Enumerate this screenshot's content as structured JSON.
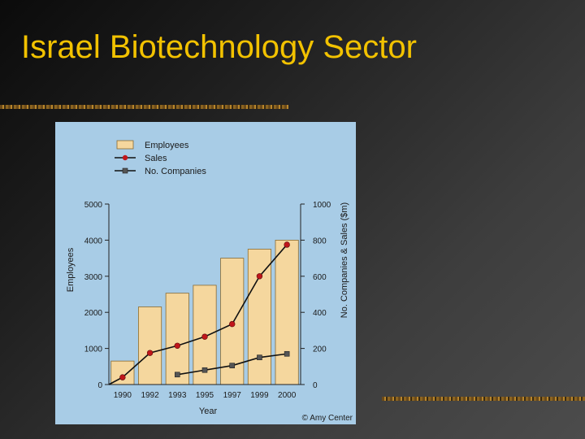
{
  "slide": {
    "title": "Israel Biotechnology Sector"
  },
  "chart_data": {
    "type": "bar",
    "categories": [
      "1990",
      "1992",
      "1993",
      "1995",
      "1997",
      "1999",
      "2000"
    ],
    "series": [
      {
        "name": "Employees",
        "type": "bar",
        "axis": "left",
        "values": [
          650,
          2150,
          2530,
          2750,
          3500,
          3750,
          4000
        ],
        "color": "#f5d79e"
      },
      {
        "name": "Sales",
        "type": "line",
        "axis": "right",
        "values": [
          40,
          175,
          215,
          265,
          335,
          600,
          775
        ],
        "color": "#c0161b"
      },
      {
        "name": "No. Companies",
        "type": "line",
        "axis": "right",
        "values": [
          null,
          null,
          55,
          80,
          105,
          150,
          170
        ],
        "color": "#555555"
      }
    ],
    "xlabel": "Year",
    "ylabel": "Employees",
    "y2label": "No. Companies & Sales ($m)",
    "ylim": [
      0,
      5000
    ],
    "y2lim": [
      0,
      1000
    ],
    "yticks": [
      "0",
      "1000",
      "2000",
      "3000",
      "4000",
      "5000"
    ],
    "y2ticks": [
      "0",
      "200",
      "400",
      "600",
      "800",
      "1000"
    ],
    "legend_position": "top-left",
    "credit": "© Amy Center",
    "background": "#a8cce6"
  }
}
